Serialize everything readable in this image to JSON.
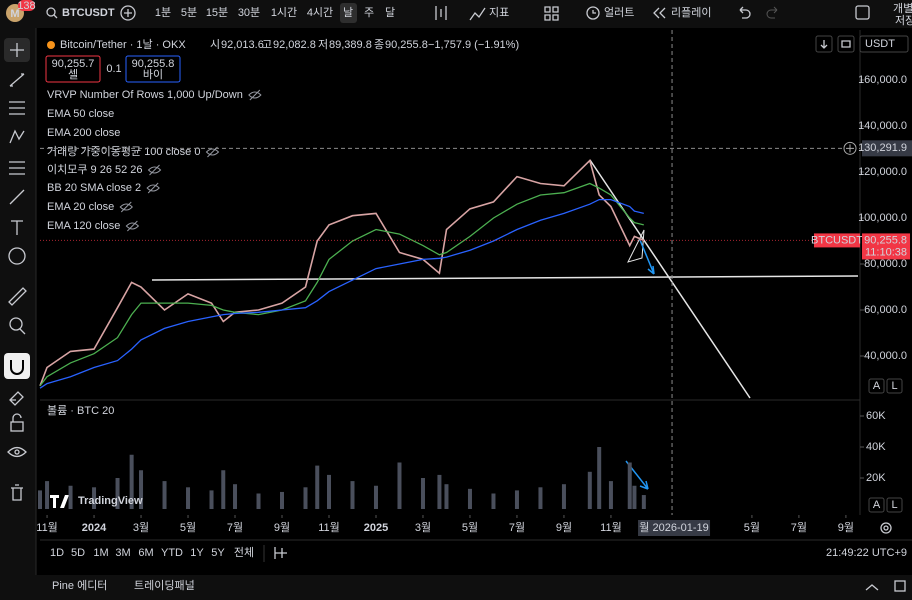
{
  "toolbar": {
    "badge": "138",
    "avatar": "M",
    "symbol": "BTCUSDT",
    "intervals": [
      "1분",
      "5분",
      "15분",
      "30분",
      "1시간",
      "4시간",
      "날",
      "주",
      "달"
    ],
    "active_interval": 6,
    "indicators": "지표",
    "alert": "얼러트",
    "replay": "리플레이",
    "layout": "개별",
    "layout_sub": "저장"
  },
  "legend": {
    "title": "Bitcoin/Tether · 1날 · OKX",
    "ohlc": [
      {
        "label": "시",
        "value": "92,013.6"
      },
      {
        "label": "고",
        "value": "92,082.8"
      },
      {
        "label": "저",
        "value": "89,389.8"
      },
      {
        "label": "종",
        "value": "90,255.8"
      }
    ],
    "change": "−1,757.9 (−1.91%)",
    "sell_price": "90,255.7",
    "sell": "셀",
    "spread": "0.1",
    "buy_price": "90,255.8",
    "buy": "바이",
    "indicators": [
      {
        "text": "VRVP Number Of Rows 1,000 Up/Down",
        "visible": false
      },
      {
        "text": "EMA 50 close",
        "visible": true
      },
      {
        "text": "EMA 200 close",
        "visible": true
      },
      {
        "text": "거래량 가중이동평균 100 close 0",
        "visible": false
      },
      {
        "text": "이치모쿠 9 26 52 26",
        "visible": false
      },
      {
        "text": "BB 20 SMA close 2",
        "visible": false
      },
      {
        "text": "EMA 20 close",
        "visible": false
      },
      {
        "text": "EMA 120 close",
        "visible": false
      }
    ],
    "currency": "USDT"
  },
  "chart_data": [
    {
      "type": "line",
      "x": [
        -0.3,
        0,
        1,
        2,
        3,
        3.6,
        4,
        5,
        6,
        7,
        7.5,
        8,
        9,
        10,
        11,
        11.5,
        12,
        13,
        14,
        15,
        16,
        16.7,
        17,
        18,
        19,
        20,
        21,
        22,
        23.1,
        23.5,
        24,
        24.8,
        25,
        25.4
      ],
      "series": [
        {
          "name": "BTCUSDT",
          "color": "#d8a4a4",
          "values": [
            27000,
            35000,
            42000,
            43000,
            61000,
            72000,
            70000,
            60000,
            67000,
            63000,
            55000,
            59000,
            60000,
            63000,
            70000,
            90000,
            97000,
            101000,
            102000,
            85000,
            82000,
            76000,
            95000,
            104000,
            107000,
            118000,
            115000,
            114000,
            125000,
            110000,
            105000,
            88000,
            92000,
            90255.8
          ]
        },
        {
          "name": "EMA 50",
          "color": "#4caf50",
          "values": [
            27000,
            31000,
            37000,
            41000,
            48000,
            58000,
            63000,
            63000,
            63000,
            62000,
            60000,
            59000,
            58000,
            60000,
            64000,
            72000,
            82000,
            90000,
            95000,
            93000,
            88000,
            84000,
            85000,
            92000,
            100000,
            106000,
            110000,
            111000,
            115000,
            113000,
            110000,
            100000,
            98000,
            97000
          ]
        },
        {
          "name": "EMA 200",
          "color": "#2962ff",
          "values": [
            26000,
            28000,
            31000,
            35000,
            38000,
            43000,
            47000,
            52000,
            55000,
            57000,
            58000,
            58500,
            59000,
            60000,
            61000,
            64000,
            68000,
            73000,
            78000,
            80000,
            82000,
            82500,
            83000,
            86000,
            90000,
            95000,
            99000,
            102000,
            106000,
            108000,
            108000,
            105000,
            103000,
            102000
          ]
        }
      ],
      "xlim": [
        -0.3,
        34.6
      ],
      "xticks": [
        {
          "value": 0,
          "label": "11월"
        },
        {
          "value": 2,
          "label": "2024"
        },
        {
          "value": 4,
          "label": "3월"
        },
        {
          "value": 6,
          "label": "5월"
        },
        {
          "value": 8,
          "label": "7월"
        },
        {
          "value": 10,
          "label": "9월"
        },
        {
          "value": 12,
          "label": "11월"
        },
        {
          "value": 14,
          "label": "2025"
        },
        {
          "value": 16,
          "label": "3월"
        },
        {
          "value": 18,
          "label": "5월"
        },
        {
          "value": 20,
          "label": "7월"
        },
        {
          "value": 22,
          "label": "9월"
        },
        {
          "value": 24,
          "label": "11월"
        },
        {
          "value": 30,
          "label": "5월"
        },
        {
          "value": 32,
          "label": "7월"
        },
        {
          "value": 34,
          "label": "9월"
        }
      ],
      "ylim": [
        20870,
        181740
      ],
      "yticks": [
        {
          "value": 40000,
          "label": "40,000.0"
        },
        {
          "value": 60000,
          "label": "60,000.0"
        },
        {
          "value": 80000,
          "label": "80,000.0"
        },
        {
          "value": 100000,
          "label": "100,000.0"
        },
        {
          "value": 120000,
          "label": "120,000.0"
        },
        {
          "value": 140000,
          "label": "140,000.0"
        },
        {
          "value": 160000,
          "label": "160,000.0"
        }
      ],
      "grid": false,
      "last_price": {
        "value": 90255.8,
        "label": "90,255.8"
      },
      "last_price_tag": "BTCUSDT",
      "countdown": "11:10:38",
      "crosshair": {
        "x": {
          "value": 26.6,
          "label": "월 2026-01-19"
        },
        "y": {
          "value": 130291.9,
          "label": "130,291.9"
        }
      }
    },
    {
      "type": "bar",
      "title": "볼륨 · BTC 20",
      "color": "#4a4f5c",
      "x": [
        -0.3,
        0,
        1,
        2,
        3,
        3.6,
        4,
        5,
        6,
        7,
        7.5,
        8,
        9,
        10,
        11,
        11.5,
        12,
        13,
        14,
        15,
        16,
        16.7,
        17,
        18,
        19,
        20,
        21,
        22,
        23.1,
        23.5,
        24,
        24.8,
        25,
        25.4
      ],
      "values": [
        12000,
        18000,
        15000,
        14000,
        20000,
        35000,
        25000,
        18000,
        14000,
        12000,
        25000,
        16000,
        10000,
        11000,
        14000,
        28000,
        22000,
        18000,
        15000,
        30000,
        20000,
        22000,
        16000,
        13000,
        10000,
        12000,
        14000,
        16000,
        24000,
        40000,
        18000,
        30000,
        15000,
        9000
      ],
      "xlim": [
        -0.3,
        34.6
      ],
      "ylim": [
        0,
        67100
      ],
      "yticks": [
        {
          "value": 20000,
          "label": "20K"
        },
        {
          "value": 40000,
          "label": "40K"
        },
        {
          "value": 60000,
          "label": "60K"
        }
      ]
    }
  ],
  "logo": "TradingView",
  "scale_buttons": [
    "A",
    "L"
  ],
  "ranges": [
    "1D",
    "5D",
    "1M",
    "3M",
    "6M",
    "YTD",
    "1Y",
    "5Y",
    "전체"
  ],
  "clock": "21:49:22 UTC+9",
  "bottom_tabs": [
    "Pine 에디터",
    "트레이딩패널"
  ]
}
